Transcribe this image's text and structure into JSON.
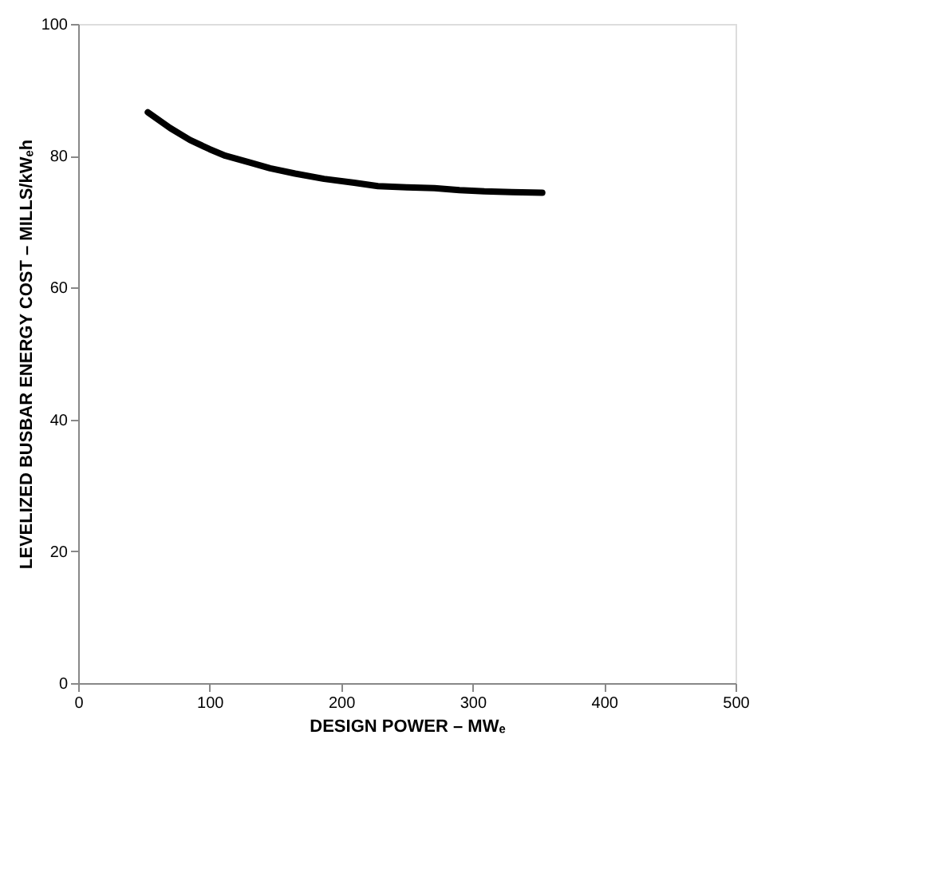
{
  "chart_data": {
    "type": "line",
    "xlabel": "DESIGN POWER – MWₑ",
    "ylabel": "LEVELIZED BUSBAR ENERGY COST – MILLS/kWₑh",
    "x": [
      53,
      70,
      85,
      100,
      112,
      130,
      146,
      165,
      187,
      210,
      228,
      250,
      271,
      290,
      309,
      330,
      353
    ],
    "series": [
      {
        "color": "#000000",
        "values": [
          86.6,
          84.2,
          82.4,
          81.0,
          80.0,
          79.0,
          78.1,
          77.3,
          76.5,
          75.9,
          75.4,
          75.2,
          75.1,
          74.8,
          74.6,
          74.5,
          74.4
        ]
      }
    ],
    "xlim": [
      0,
      500
    ],
    "ylim": [
      0,
      100
    ],
    "xticks": [
      0,
      100,
      200,
      300,
      400,
      500
    ],
    "yticks": [
      0,
      20,
      40,
      60,
      80,
      100
    ],
    "grid": false,
    "legend": false,
    "marker": "none",
    "line_style": "solid"
  }
}
